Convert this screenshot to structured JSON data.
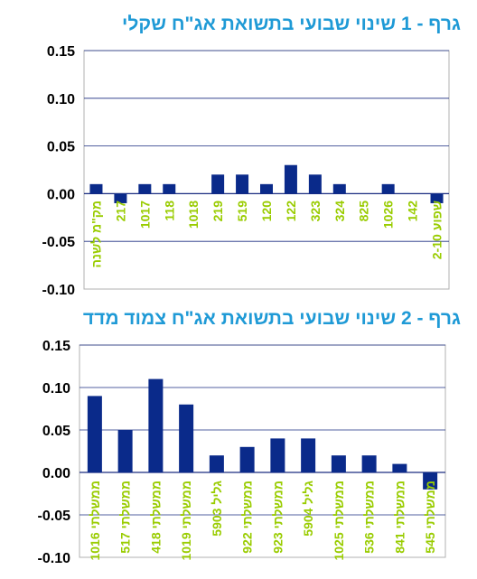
{
  "chart_data": [
    {
      "type": "bar",
      "title": "גרף - 1  שינוי שבועי בתשואת אג\"ח שקלי",
      "categories": [
        "מק\"מ לשנה",
        "217",
        "1017",
        "118",
        "1018",
        "219",
        "519",
        "120",
        "122",
        "323",
        "324",
        "825",
        "1026",
        "142",
        "שפוע 2-10"
      ],
      "values": [
        0.01,
        -0.01,
        0.01,
        0.01,
        0,
        0.02,
        0.02,
        0.01,
        0.03,
        0.02,
        0.01,
        0,
        0.01,
        0,
        -0.01
      ],
      "yticks": [
        "0.15",
        "0.10",
        "0.05",
        "0.00",
        "-0.05",
        "-0.10"
      ],
      "ylim": [
        -0.1,
        0.15
      ],
      "grid": true,
      "bar_color": "#0a2a8a"
    },
    {
      "type": "bar",
      "title": "גרף - 2  שינוי שבועי בתשואת אג\"ח צמוד מדד",
      "categories": [
        "ממשלתי 1016",
        "ממשלתי 517",
        "ממשלתי 418",
        "ממשלתי 1019",
        "גליל 5903",
        "ממשלתי 922",
        "ממשלתי 923",
        "גליל 5904",
        "ממשלתי 1025",
        "ממשלתי 536",
        "ממשלתי 841",
        "ממשלתי 545"
      ],
      "values": [
        0.09,
        0.05,
        0.11,
        0.08,
        0.02,
        0.03,
        0.04,
        0.04,
        0.02,
        0.02,
        0.01,
        -0.02
      ],
      "yticks": [
        "0.15",
        "0.10",
        "0.05",
        "0.00",
        "-0.05",
        "-0.10"
      ],
      "ylim": [
        -0.1,
        0.15
      ],
      "grid": true,
      "bar_color": "#0a2a8a"
    }
  ]
}
